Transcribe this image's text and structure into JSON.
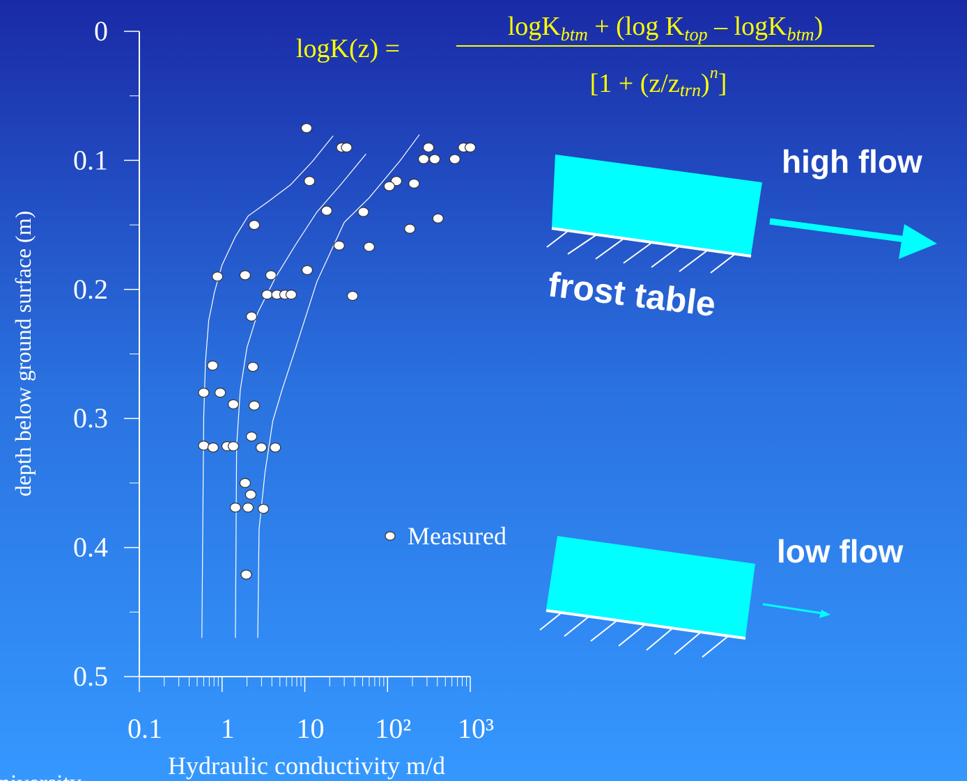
{
  "chart_data": {
    "type": "scatter",
    "xlabel": "Hydraulic conductivity m/d",
    "ylabel": "depth below ground surface (m)",
    "xscale": "log",
    "yinverted": true,
    "xlim": [
      0.1,
      1000
    ],
    "ylim": [
      0,
      0.5
    ],
    "xticks": [
      0.1,
      1,
      10,
      {
        "value": 100,
        "label": "10²"
      },
      {
        "value": 1000,
        "label": "10³"
      }
    ],
    "yticks": [
      0,
      0.1,
      0.2,
      0.3,
      0.4,
      0.5
    ],
    "legend": "center",
    "series": [
      {
        "name": "Measured",
        "color": "#ffffff",
        "x": [
          10.5,
          28,
          32,
          11.4,
          18.4,
          2.45,
          313,
          273,
          372,
          650,
          830,
          1000,
          128,
          105,
          209,
          51,
          186,
          408,
          26,
          60,
          10.7,
          0.88,
          1.9,
          3.9,
          3.5,
          4.6,
          5.75,
          6.85,
          37.8,
          2.27,
          0.77,
          2.36,
          0.6,
          0.95,
          1.37,
          2.45,
          0.6,
          0.78,
          1.15,
          1.37,
          2.27,
          2.98,
          4.4,
          1.9,
          2.22,
          1.45,
          2.06,
          3.16,
          1.96
        ],
        "values": [
          0.075,
          0.09,
          0.09,
          0.116,
          0.139,
          0.15,
          0.09,
          0.099,
          0.099,
          0.099,
          0.09,
          0.09,
          0.116,
          0.12,
          0.118,
          0.14,
          0.153,
          0.145,
          0.166,
          0.167,
          0.185,
          0.19,
          0.189,
          0.189,
          0.204,
          0.204,
          0.204,
          0.204,
          0.205,
          0.221,
          0.259,
          0.26,
          0.28,
          0.28,
          0.289,
          0.29,
          0.321,
          0.3225,
          0.3215,
          0.3215,
          0.314,
          0.3225,
          0.3225,
          0.35,
          0.359,
          0.369,
          0.369,
          0.37,
          0.421
        ]
      }
    ],
    "fits": [
      {
        "x": [
          22,
          12.3,
          6.7,
          3.6,
          2.07,
          1.45,
          1.0,
          0.81,
          0.69,
          0.63,
          0.6,
          0.57
        ],
        "y": [
          0.081,
          0.101,
          0.119,
          0.132,
          0.143,
          0.159,
          0.181,
          0.202,
          0.224,
          0.256,
          0.299,
          0.47
        ]
      },
      {
        "x": [
          55,
          27,
          14,
          7.8,
          4.4,
          2.7,
          2.0,
          1.66,
          1.5,
          1.45
        ],
        "y": [
          0.095,
          0.119,
          0.14,
          0.165,
          0.191,
          0.218,
          0.245,
          0.278,
          0.321,
          0.47
        ]
      },
      {
        "x": [
          243,
          143,
          60,
          30,
          14,
          7.8,
          5.3,
          4.1,
          3.3,
          2.8,
          2.7
        ],
        "y": [
          0.08,
          0.1,
          0.129,
          0.148,
          0.194,
          0.245,
          0.278,
          0.302,
          0.342,
          0.386,
          0.47
        ]
      }
    ]
  },
  "formula": {
    "lhs": "logK(z) =",
    "numerator": [
      "logK",
      "btm",
      " + (log K",
      "top",
      " – logK",
      "btm",
      ")"
    ],
    "denominator": [
      "[1 + (z/z",
      "trn",
      ")",
      "n",
      "]"
    ]
  },
  "annotations": {
    "high_flow": "high flow",
    "frost_table": "frost table",
    "low_flow": "low flow",
    "footer": "niversity"
  }
}
